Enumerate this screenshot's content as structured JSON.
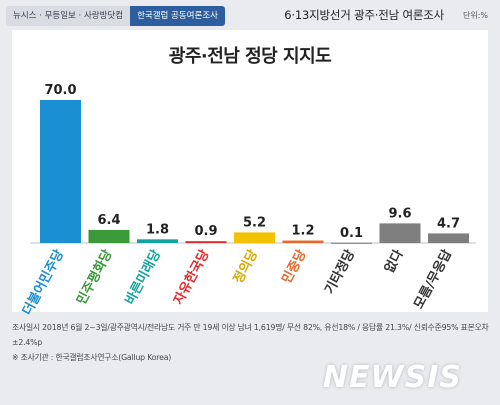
{
  "header": {
    "source_left": "뉴시스 · 무등일보 · 사랑방닷컴",
    "source_right": "한국갤럽 공동여론조사",
    "title": "6·13지방선거 광주·전남 여론조사",
    "unit": "단위:%"
  },
  "chart_data": {
    "type": "bar",
    "title": "광주·전남 정당 지지도",
    "categories": [
      "더불어민주당",
      "민주평화당",
      "바른미래당",
      "자유한국당",
      "정의당",
      "민중당",
      "기타정당",
      "없다",
      "모름/무응답"
    ],
    "values": [
      70.0,
      6.4,
      1.8,
      0.9,
      5.2,
      1.2,
      0.1,
      9.6,
      4.7
    ],
    "value_labels": [
      "70.0",
      "6.4",
      "1.8",
      "0.9",
      "5.2",
      "1.2",
      "0.1",
      "9.6",
      "4.7"
    ],
    "colors": [
      "#1a8fd1",
      "#3a9a3a",
      "#14a3a0",
      "#e12a2a",
      "#f2c200",
      "#e8672a",
      "#777777",
      "#7f7f7f",
      "#7f7f7f"
    ],
    "label_colors": [
      "#1a8fd1",
      "#3a9a3a",
      "#14a3a0",
      "#e12a2a",
      "#d9a800",
      "#e8672a",
      "#333333",
      "#333333",
      "#333333"
    ],
    "ylim": [
      0,
      70
    ],
    "xlabel": "",
    "ylabel": "",
    "legend": "none",
    "grid": false
  },
  "footer": {
    "line1": "조사일시 2018년 6월 2~3일/광주광역시/전라남도 거주 만 19세 이상 남녀 1,619명/ 무선 82%, 유선18% / 응답률 21.3%/ 신뢰수준95% 표본오차±2.4%p",
    "line2": "※ 조사기관 : 한국갤럽조사연구소(Gallup Korea)"
  },
  "watermark": "NEWSIS"
}
